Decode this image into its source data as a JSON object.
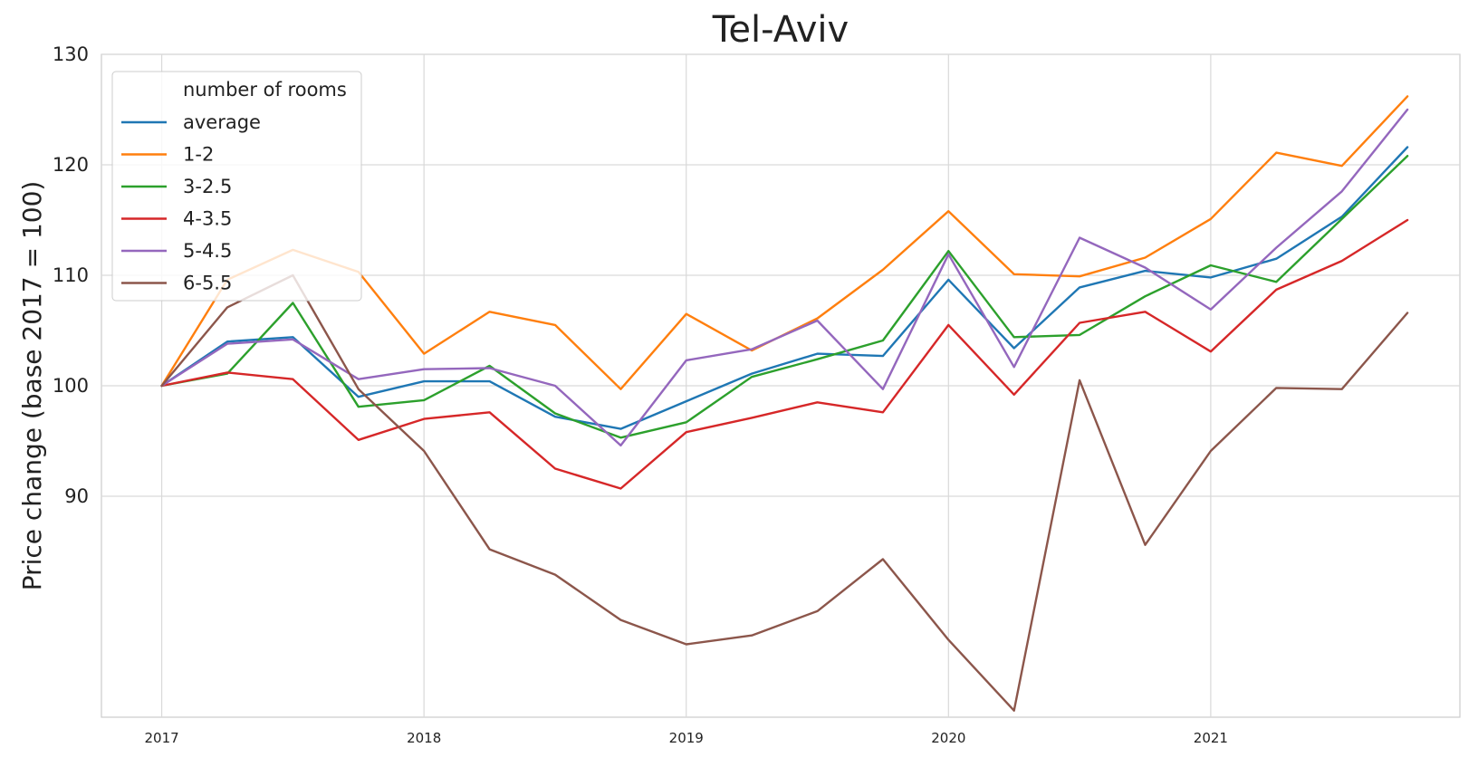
{
  "chart_data": {
    "type": "line",
    "title": "Tel-Aviv",
    "ylabel": "Price change (base 2017 = 100)",
    "xlabel": "",
    "ylim": [
      70,
      130
    ],
    "xlim": [
      2016.77,
      2021.95
    ],
    "yticks": [
      90,
      100,
      110,
      120,
      130
    ],
    "xticks": [
      2017,
      2018,
      2019,
      2020,
      2021
    ],
    "xtick_labels": [
      "2017",
      "2018",
      "2019",
      "2020",
      "2021"
    ],
    "grid": true,
    "legend": {
      "title": "number of rooms",
      "position": "top-left"
    },
    "x": [
      2017.0,
      2017.25,
      2017.5,
      2017.75,
      2018.0,
      2018.25,
      2018.5,
      2018.75,
      2019.0,
      2019.25,
      2019.5,
      2019.75,
      2020.0,
      2020.25,
      2020.5,
      2020.75,
      2021.0,
      2021.25,
      2021.5,
      2021.75
    ],
    "series": [
      {
        "name": "average",
        "color": "#1f77b4",
        "values": [
          100.0,
          104.0,
          104.4,
          99.0,
          100.4,
          100.4,
          97.2,
          96.1,
          98.6,
          101.1,
          102.9,
          102.7,
          109.6,
          103.4,
          108.9,
          110.4,
          109.8,
          111.5,
          115.3,
          121.6
        ]
      },
      {
        "name": "1-2",
        "color": "#ff7f0e",
        "values": [
          100.0,
          109.6,
          112.3,
          110.3,
          102.9,
          106.7,
          105.5,
          99.7,
          106.5,
          103.2,
          106.1,
          110.5,
          115.8,
          110.1,
          109.9,
          111.6,
          115.1,
          121.1,
          119.9,
          126.2
        ]
      },
      {
        "name": "3-2.5",
        "color": "#2ca02c",
        "values": [
          100.0,
          101.1,
          107.5,
          98.1,
          98.7,
          101.8,
          97.5,
          95.3,
          96.7,
          100.8,
          102.4,
          104.1,
          112.2,
          104.4,
          104.6,
          108.1,
          110.9,
          109.4,
          115.1,
          120.8
        ]
      },
      {
        "name": "4-3.5",
        "color": "#d62728",
        "values": [
          100.0,
          101.2,
          100.6,
          95.1,
          97.0,
          97.6,
          92.5,
          90.7,
          95.8,
          97.1,
          98.5,
          97.6,
          105.5,
          99.2,
          105.7,
          106.7,
          103.1,
          108.7,
          111.3,
          115.0
        ]
      },
      {
        "name": "5-4.5",
        "color": "#9467bd",
        "values": [
          100.0,
          103.8,
          104.2,
          100.6,
          101.5,
          101.6,
          100.0,
          94.6,
          102.3,
          103.3,
          105.9,
          99.7,
          111.9,
          101.7,
          113.4,
          110.7,
          106.9,
          112.5,
          117.6,
          125.0
        ]
      },
      {
        "name": "6-5.5",
        "color": "#8c564b",
        "values": [
          100.0,
          107.1,
          110.0,
          99.7,
          94.1,
          85.2,
          82.9,
          78.8,
          76.6,
          77.4,
          79.6,
          84.3,
          77.0,
          70.6,
          100.5,
          85.6,
          94.1,
          99.8,
          99.7,
          106.6
        ]
      }
    ]
  }
}
